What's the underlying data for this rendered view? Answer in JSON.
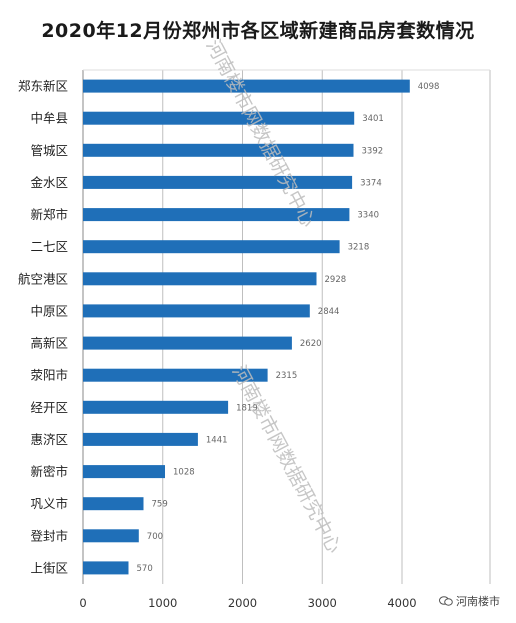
{
  "title": "2020年12月份郑州市各区域新建商品房套数情况",
  "watermark": "河南楼市网数据研究中心",
  "brand": "河南楼市",
  "colors": {
    "bar": "#1f6fb8",
    "grid": "#bfbfbf",
    "axis": "#888888"
  },
  "chart_data": {
    "type": "bar",
    "orientation": "horizontal",
    "title": "2020年12月份郑州市各区域新建商品房套数情况",
    "categories": [
      "郑东新区",
      "中牟县",
      "管城区",
      "金水区",
      "新郑市",
      "二七区",
      "航空港区",
      "中原区",
      "高新区",
      "荥阳市",
      "经开区",
      "惠济区",
      "新密市",
      "巩义市",
      "登封市",
      "上街区"
    ],
    "values": [
      4098,
      3401,
      3392,
      3374,
      3340,
      3218,
      2928,
      2844,
      2620,
      2315,
      1819,
      1441,
      1028,
      759,
      700,
      570
    ],
    "xlim": [
      0,
      4000
    ],
    "xticks": [
      0,
      1000,
      2000,
      3000,
      4000
    ],
    "grid": true,
    "legend": "none"
  }
}
